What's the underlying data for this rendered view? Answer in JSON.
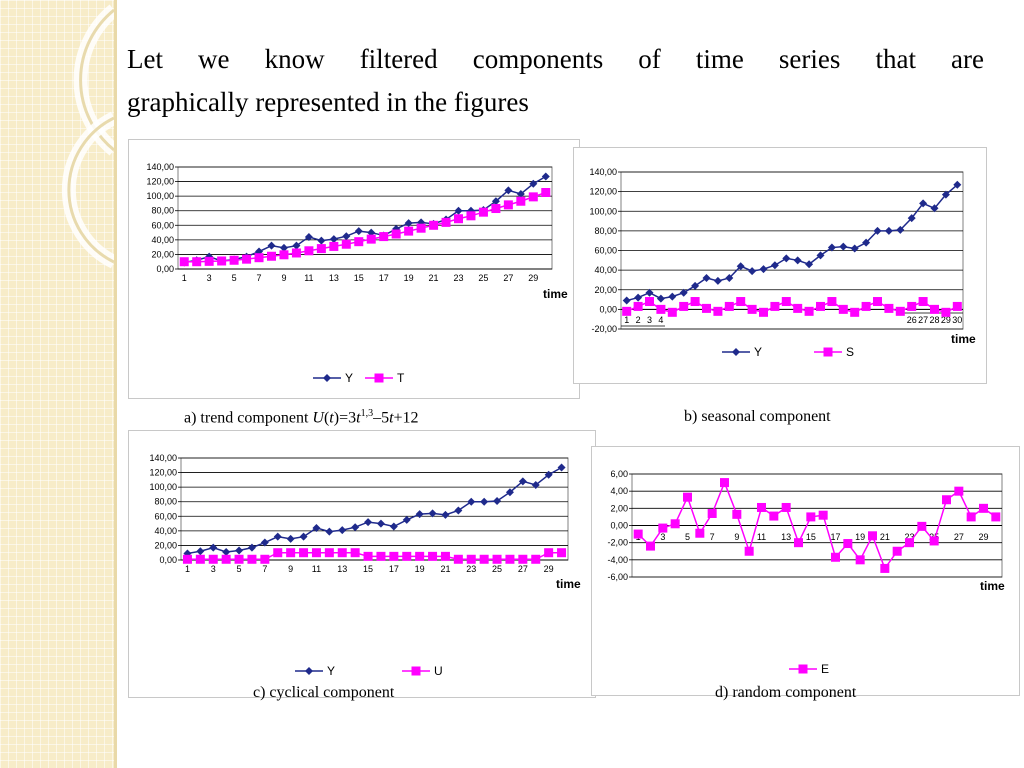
{
  "title": "Let we know filtered components of time series that are graphically represented in the figures",
  "title_lines": [
    "Let we know filtered components of time series that are",
    "graphically represented in the figures"
  ],
  "colors": {
    "Y": "#1f2a8c",
    "component": "#ff00ff",
    "sidebar": "#f7ecc8"
  },
  "captions": {
    "a": {
      "prefix": "a) trend component ",
      "U": "U",
      "open": "(",
      "t1": "t",
      "close": ")=3",
      "t2": "t",
      "exp": "1,3",
      "mid": "–5",
      "t3": "t",
      "end": "+12"
    },
    "b": "b) seasonal component",
    "c": "c) cyclical component",
    "d": "d) random component"
  },
  "chart_data": [
    {
      "id": "a",
      "type": "line",
      "xlabel": "time",
      "x_ticks": [
        "1",
        "3",
        "5",
        "7",
        "9",
        "11",
        "13",
        "15",
        "17",
        "19",
        "21",
        "23",
        "25",
        "27",
        "29"
      ],
      "y_ticks": [
        "0,00",
        "20,00",
        "40,00",
        "60,00",
        "80,00",
        "100,00",
        "120,00",
        "140,00"
      ],
      "ylim": [
        0,
        140
      ],
      "grid": true,
      "legend": "bottom",
      "series": [
        {
          "name": "Y",
          "marker": "diamond",
          "values": [
            9,
            12,
            17,
            11,
            13,
            17,
            24,
            32,
            29,
            32,
            44,
            39,
            41,
            45,
            52,
            50,
            46,
            55,
            63,
            64,
            62,
            68,
            80,
            80,
            81,
            93,
            108,
            103,
            117,
            127
          ]
        },
        {
          "name": "T",
          "marker": "square",
          "values": [
            10,
            10,
            10.5,
            11,
            12,
            13.5,
            15.5,
            17.5,
            19.5,
            22,
            25,
            28,
            31,
            34,
            37.5,
            41,
            44.5,
            48,
            52,
            56,
            60,
            64,
            69,
            73,
            78,
            83,
            88,
            93,
            99,
            105
          ]
        }
      ]
    },
    {
      "id": "b",
      "type": "line",
      "xlabel": "time",
      "x_ticks_left": [
        "1",
        "2",
        "3",
        "4"
      ],
      "x_ticks_right": [
        "26",
        "27",
        "28",
        "29",
        "30"
      ],
      "y_ticks": [
        "-20,00",
        "0,00",
        "20,00",
        "40,00",
        "60,00",
        "80,00",
        "100,00",
        "120,00",
        "140,00"
      ],
      "ylim": [
        -20,
        140
      ],
      "grid": true,
      "legend": "bottom",
      "series": [
        {
          "name": "Y",
          "marker": "diamond",
          "values": [
            9,
            12,
            17,
            11,
            13,
            17,
            24,
            32,
            29,
            32,
            44,
            39,
            41,
            45,
            52,
            50,
            46,
            55,
            63,
            64,
            62,
            68,
            80,
            80,
            81,
            93,
            108,
            103,
            117,
            127
          ]
        },
        {
          "name": "S",
          "marker": "square",
          "values": [
            -2,
            3,
            8,
            0,
            -3,
            3,
            8,
            1,
            -2,
            3,
            8,
            0,
            -3,
            3,
            8,
            1,
            -2,
            3,
            8,
            0,
            -3,
            3,
            8,
            1,
            -2,
            3,
            8,
            0,
            -3,
            3
          ]
        }
      ]
    },
    {
      "id": "c",
      "type": "line",
      "xlabel": "time",
      "x_ticks": [
        "1",
        "3",
        "5",
        "7",
        "9",
        "11",
        "13",
        "15",
        "17",
        "19",
        "21",
        "23",
        "25",
        "27",
        "29"
      ],
      "y_ticks": [
        "0,00",
        "20,00",
        "40,00",
        "60,00",
        "80,00",
        "100,00",
        "120,00",
        "140,00"
      ],
      "ylim": [
        0,
        140
      ],
      "grid": true,
      "legend": "bottom",
      "series": [
        {
          "name": "Y",
          "marker": "diamond",
          "values": [
            9,
            12,
            17,
            11,
            13,
            17,
            24,
            32,
            29,
            32,
            44,
            39,
            41,
            45,
            52,
            50,
            46,
            55,
            63,
            64,
            62,
            68,
            80,
            80,
            81,
            93,
            108,
            103,
            117,
            127
          ]
        },
        {
          "name": "U",
          "marker": "square",
          "values": [
            1,
            1,
            1,
            1,
            1,
            1,
            1,
            10,
            10,
            10,
            10,
            10,
            10,
            10,
            5,
            5,
            5,
            5,
            5,
            5,
            5,
            1,
            1,
            1,
            1,
            1,
            1,
            1,
            10,
            10
          ]
        }
      ]
    },
    {
      "id": "d",
      "type": "line",
      "xlabel": "time",
      "x_ticks": [
        "1",
        "3",
        "5",
        "7",
        "9",
        "11",
        "13",
        "15",
        "17",
        "19",
        "21",
        "23",
        "25",
        "27",
        "29"
      ],
      "y_ticks": [
        "-6,00",
        "-4,00",
        "-2,00",
        "0,00",
        "2,00",
        "4,00",
        "6,00"
      ],
      "ylim": [
        -6,
        6
      ],
      "grid": true,
      "legend": "bottom",
      "series": [
        {
          "name": "E",
          "marker": "square",
          "values": [
            -1,
            -2.4,
            -0.3,
            0.2,
            3.3,
            -0.9,
            1.4,
            5,
            1.3,
            -3,
            2.1,
            1.1,
            2.1,
            -2,
            1,
            1.2,
            -3.7,
            -2.1,
            -4,
            -1.2,
            -5,
            -3,
            -2,
            -0.1,
            -1.8,
            3,
            4,
            1,
            2,
            1
          ]
        }
      ]
    }
  ]
}
